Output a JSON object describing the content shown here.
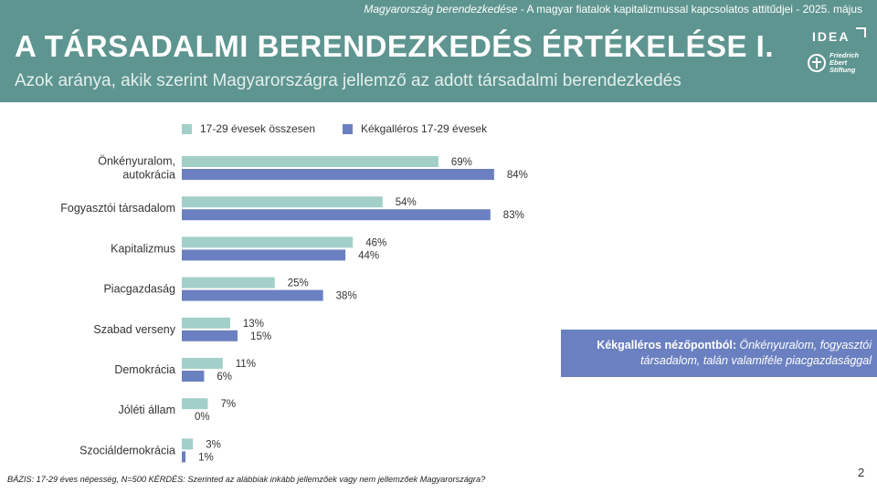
{
  "header": {
    "top_line_italic": "Magyarország berendezkedése",
    "top_line_rest": " - A magyar fiatalok kapitalizmussal kapcsolatos attitűdjei  - 2025. május",
    "title": "A TÁRSADALMI BERENDEZKEDÉS ÉRTÉKELÉSE I.",
    "subtitle": "Azok aránya, akik szerint Magyarországra jellemző az adott társadalmi berendezkedés",
    "logo_idea": "IDEA",
    "logo_fes_lines": [
      "Friedrich",
      "Ebert",
      "Stiftung"
    ]
  },
  "colors": {
    "header_bg": "#5e9590",
    "series_1": "#a3cfc9",
    "series_2": "#6b80c0",
    "callout_bg": "#6b80c0"
  },
  "chart_data": {
    "type": "bar",
    "orientation": "horizontal",
    "categories": [
      [
        "Önkényuralom,",
        "autokrácia"
      ],
      [
        "Fogyasztói társadalom"
      ],
      [
        "Kapitalizmus"
      ],
      [
        "Piacgazdaság"
      ],
      [
        "Szabad verseny"
      ],
      [
        "Demokrácia"
      ],
      [
        "Jóléti állam"
      ],
      [
        "Szociáldemokrácia"
      ]
    ],
    "series": [
      {
        "name": "17-29 évesek összesen",
        "values": [
          69,
          54,
          46,
          25,
          13,
          11,
          7,
          3
        ]
      },
      {
        "name": "Kékgalléros 17-29 évesek",
        "values": [
          84,
          83,
          44,
          38,
          15,
          6,
          0,
          1
        ]
      }
    ],
    "value_suffix": "%",
    "xlim": [
      0,
      100
    ],
    "legend": "top"
  },
  "callout": {
    "bold": "Kékgalléros nézőpontból:",
    "italic_1": " Önkényuralom, fogyasztói",
    "italic_2": "társadalom, talán valamiféle piacgazdasággal"
  },
  "footer": "BÁZIS: 17-29 éves népesség, N=500  KÉRDÉS: Szerinted az alábbiak inkább jellemzőek vagy nem jellemzőek Magyarországra?",
  "page_number": "2"
}
